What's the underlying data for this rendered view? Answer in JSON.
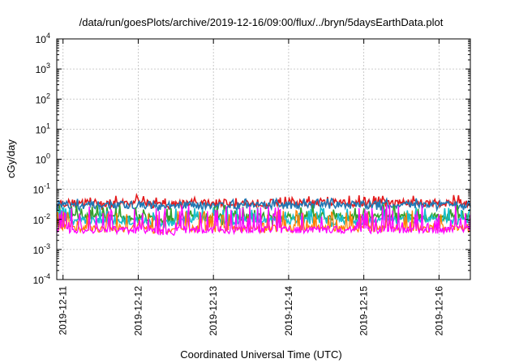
{
  "chart_data": {
    "type": "line",
    "title": "/data/run/goesPlots/archive/2019-12-16/09:00/flux/../bryn/5daysEarthData.plot",
    "xlabel": "Coordinated Universal Time (UTC)",
    "ylabel": "cGy/day",
    "yscale": "log",
    "ylim": [
      0.0001,
      10000
    ],
    "xlim": [
      "2019-12-10T22:00",
      "2019-12-16T10:00"
    ],
    "grid": true,
    "x_ticks": [
      "2019-12-11",
      "2019-12-12",
      "2019-12-13",
      "2019-12-14",
      "2019-12-15",
      "2019-12-16"
    ],
    "y_ticks": [
      {
        "value": 0.0001,
        "base": "10",
        "exp": "-4"
      },
      {
        "value": 0.001,
        "base": "10",
        "exp": "-3"
      },
      {
        "value": 0.01,
        "base": "10",
        "exp": "-2"
      },
      {
        "value": 0.1,
        "base": "10",
        "exp": "-1"
      },
      {
        "value": 1,
        "base": "10",
        "exp": "0"
      },
      {
        "value": 10,
        "base": "10",
        "exp": "1"
      },
      {
        "value": 100,
        "base": "10",
        "exp": "2"
      },
      {
        "value": 1000,
        "base": "10",
        "exp": "3"
      },
      {
        "value": 10000,
        "base": "10",
        "exp": "4"
      }
    ],
    "series": [
      {
        "color": "#e41a1c",
        "base": 0.035,
        "min": 0.02,
        "max": 0.065
      },
      {
        "color": "#1f78b4",
        "base": 0.03,
        "min": 0.018,
        "max": 0.05
      },
      {
        "color": "#33a02c",
        "base": 0.012,
        "min": 0.006,
        "max": 0.03
      },
      {
        "color": "#17becf",
        "base": 0.009,
        "min": 0.005,
        "max": 0.025
      },
      {
        "color": "#ff7f00",
        "base": 0.005,
        "min": 0.0035,
        "max": 0.02
      },
      {
        "color": "#ff00ff",
        "base": 0.0045,
        "min": 0.003,
        "max": 0.03
      }
    ]
  }
}
